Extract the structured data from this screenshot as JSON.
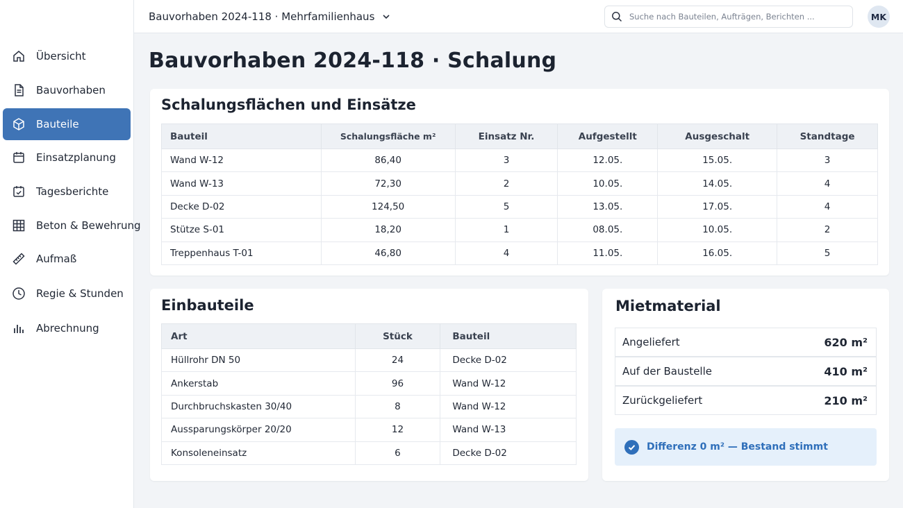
{
  "header": {
    "project_label": "Bauvorhaben 2024-118 · Mehrfamilienhaus",
    "search_placeholder": "Suche nach Bauteilen, Aufträgen, Berichten ...",
    "avatar_initials": "MK"
  },
  "sidebar": {
    "items": [
      {
        "label": "Übersicht",
        "icon": "home-icon",
        "active": false
      },
      {
        "label": "Bauvorhaben",
        "icon": "document-icon",
        "active": false
      },
      {
        "label": "Bauteile",
        "icon": "cube-icon",
        "active": true
      },
      {
        "label": "Einsatzplanung",
        "icon": "calendar-icon",
        "active": false
      },
      {
        "label": "Tagesberichte",
        "icon": "calendar-check-icon",
        "active": false
      },
      {
        "label": "Beton & Bewehrung",
        "icon": "grid-icon",
        "active": false
      },
      {
        "label": "Aufmaß",
        "icon": "ruler-icon",
        "active": false
      },
      {
        "label": "Regie & Stunden",
        "icon": "clock-icon",
        "active": false
      },
      {
        "label": "Abrechnung",
        "icon": "bar-chart-icon",
        "active": false
      }
    ]
  },
  "page": {
    "title": "Bauvorhaben 2024-118 · Schalung"
  },
  "schalung": {
    "title": "Schalungsflächen und Einsätze",
    "columns": [
      "Bauteil",
      "Schalungsfläche m²",
      "Einsatz Nr.",
      "Aufgestellt",
      "Ausgeschalt",
      "Standtage"
    ],
    "rows": [
      [
        "Wand W-12",
        "86,40",
        "3",
        "12.05.",
        "15.05.",
        "3"
      ],
      [
        "Wand W-13",
        "72,30",
        "2",
        "10.05.",
        "14.05.",
        "4"
      ],
      [
        "Decke D-02",
        "124,50",
        "5",
        "13.05.",
        "17.05.",
        "4"
      ],
      [
        "Stütze S-01",
        "18,20",
        "1",
        "08.05.",
        "10.05.",
        "2"
      ],
      [
        "Treppenhaus T-01",
        "46,80",
        "4",
        "11.05.",
        "16.05.",
        "5"
      ]
    ]
  },
  "einbauteile": {
    "title": "Einbauteile",
    "columns": [
      "Art",
      "Stück",
      "Bauteil"
    ],
    "rows": [
      [
        "Hüllrohr DN 50",
        "24",
        "Decke D-02"
      ],
      [
        "Ankerstab",
        "96",
        "Wand W-12"
      ],
      [
        "Durchbruchskasten 30/40",
        "8",
        "Wand W-12"
      ],
      [
        "Aussparungskörper 20/20",
        "12",
        "Wand W-13"
      ],
      [
        "Konsoleneinsatz",
        "6",
        "Decke D-02"
      ]
    ]
  },
  "mietmaterial": {
    "title": "Mietmaterial",
    "items": [
      {
        "label": "Angeliefert",
        "value": "620 m²"
      },
      {
        "label": "Auf der Baustelle",
        "value": "410 m²"
      },
      {
        "label": "Zurückgeliefert",
        "value": "210 m²"
      }
    ],
    "status_text": "Differenz 0 m² — Bestand stimmt",
    "status_color": "#2f6fba"
  },
  "colors": {
    "accent": "#3f74b6",
    "background": "#f2f4f7"
  }
}
